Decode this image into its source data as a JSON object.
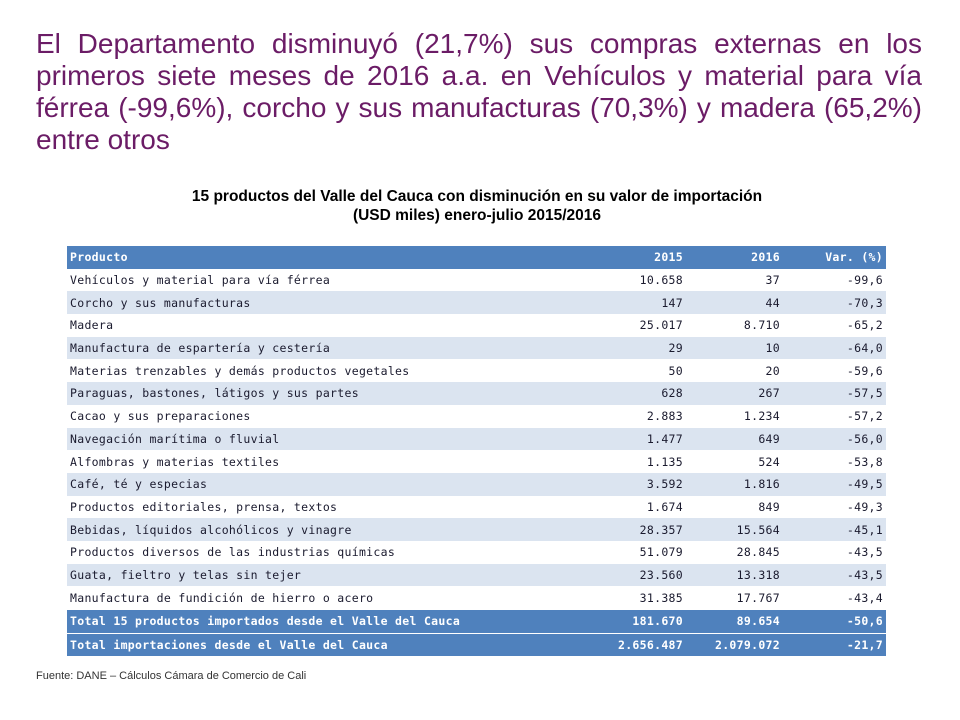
{
  "headline": "El Departamento disminuyó (21,7%) sus compras externas en los primeros siete meses de 2016 a.a. en Vehículos y material para vía férrea (-99,6%), corcho y sus manufacturas (70,3%) y madera (65,2%) entre otros",
  "table_title_line1": "15 productos del Valle del Cauca con disminución en su valor de importación",
  "table_title_line2": "(USD miles) enero-julio 2015/2016",
  "table": {
    "headers": [
      "Producto",
      "2015",
      "2016",
      "Var. (%)"
    ],
    "rows": [
      [
        "Vehículos y material para vía férrea",
        "10.658",
        "37",
        "-99,6"
      ],
      [
        "Corcho y sus manufacturas",
        "147",
        "44",
        "-70,3"
      ],
      [
        "Madera",
        "25.017",
        "8.710",
        "-65,2"
      ],
      [
        "Manufactura de espartería y cestería",
        "29",
        "10",
        "-64,0"
      ],
      [
        "Materias trenzables y demás productos vegetales",
        "50",
        "20",
        "-59,6"
      ],
      [
        "Paraguas, bastones, látigos y sus partes",
        "628",
        "267",
        "-57,5"
      ],
      [
        "Cacao y sus preparaciones",
        "2.883",
        "1.234",
        "-57,2"
      ],
      [
        "Navegación marítima o fluvial",
        "1.477",
        "649",
        "-56,0"
      ],
      [
        "Alfombras y materias textiles",
        "1.135",
        "524",
        "-53,8"
      ],
      [
        "Café, té y especias",
        "3.592",
        "1.816",
        "-49,5"
      ],
      [
        "Productos editoriales, prensa, textos",
        "1.674",
        "849",
        "-49,3"
      ],
      [
        "Bebidas, líquidos alcohólicos y vinagre",
        "28.357",
        "15.564",
        "-45,1"
      ],
      [
        "Productos diversos de las industrias químicas",
        "51.079",
        "28.845",
        "-43,5"
      ],
      [
        "Guata, fieltro y telas sin tejer",
        "23.560",
        "13.318",
        "-43,5"
      ],
      [
        "Manufactura de fundición de hierro o acero",
        "31.385",
        "17.767",
        "-43,4"
      ]
    ],
    "totals": [
      [
        "Total 15 productos importados desde el Valle del Cauca",
        "181.670",
        "89.654",
        "-50,6"
      ],
      [
        "Total importaciones desde el Valle del Cauca",
        "2.656.487",
        "2.079.072",
        "-21,7"
      ]
    ]
  },
  "source": "Fuente: DANE – Cálculos Cámara de Comercio de Cali",
  "colors": {
    "headline": "#6b1c66",
    "header_bg": "#4f81bd",
    "band_bg": "#dbe4f0"
  }
}
